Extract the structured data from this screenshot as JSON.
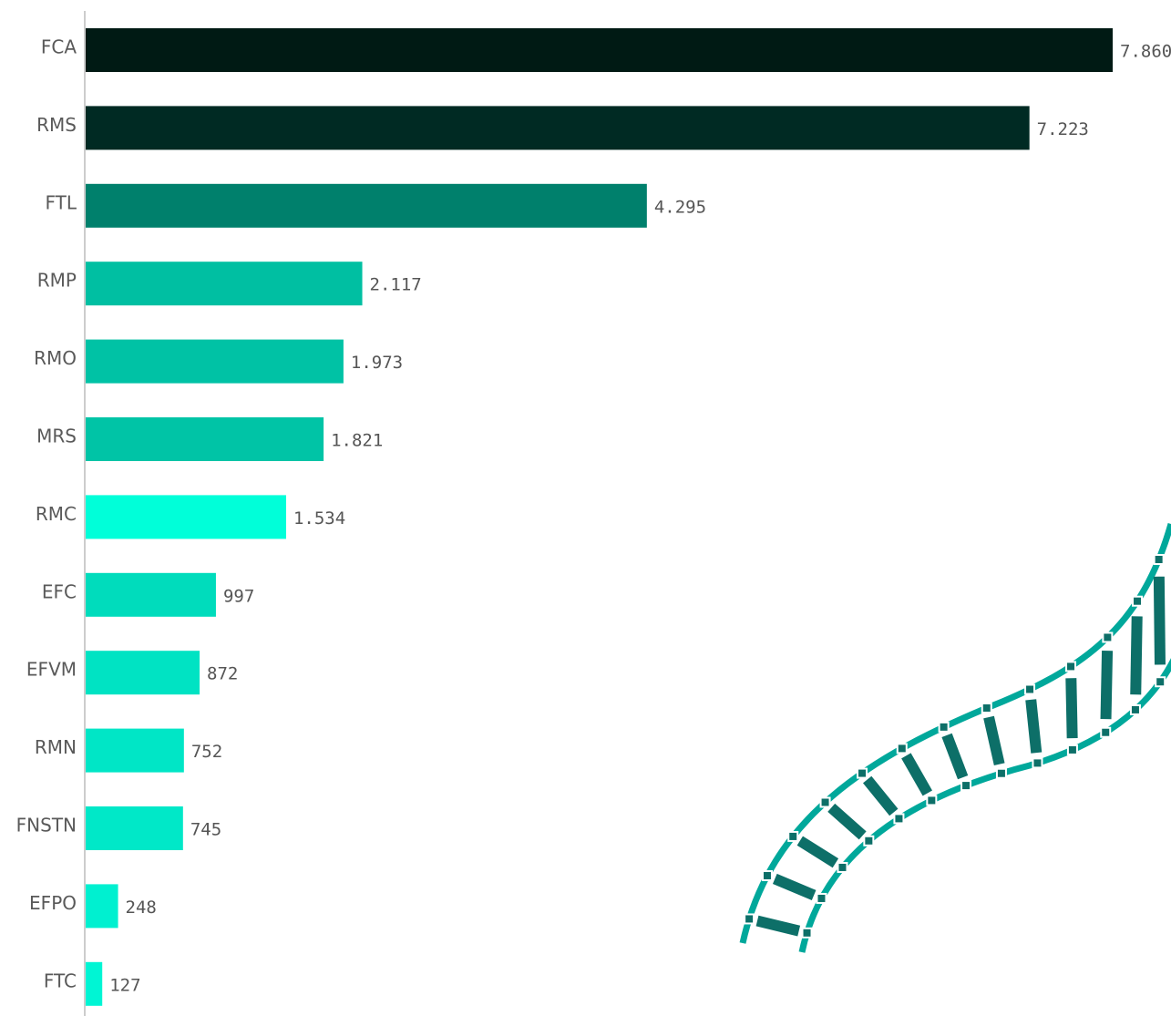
{
  "chart_data": {
    "type": "bar",
    "orientation": "horizontal",
    "categories": [
      "FCA",
      "RMS",
      "FTL",
      "RMP",
      "RMO",
      "MRS",
      "RMC",
      "EFC",
      "EFVM",
      "RMN",
      "FNSTN",
      "EFPO",
      "FTC"
    ],
    "values": [
      7860,
      7223,
      4295,
      2117,
      1973,
      1821,
      1534,
      997,
      872,
      752,
      745,
      248,
      127
    ],
    "value_labels": [
      "7.860",
      "7.223",
      "4.295",
      "2.117",
      "1.973",
      "1.821",
      "1.534",
      "997",
      "872",
      "752",
      "745",
      "248",
      "127"
    ],
    "colors": [
      "#001a14",
      "#002a23",
      "#00806c",
      "#00bfa2",
      "#00c2a5",
      "#00c4a6",
      "#00ffd9",
      "#00dcbc",
      "#00e3c3",
      "#00e6c6",
      "#00e8c8",
      "#00f0d0",
      "#00f5d4"
    ],
    "xlim": [
      0,
      7860
    ]
  }
}
